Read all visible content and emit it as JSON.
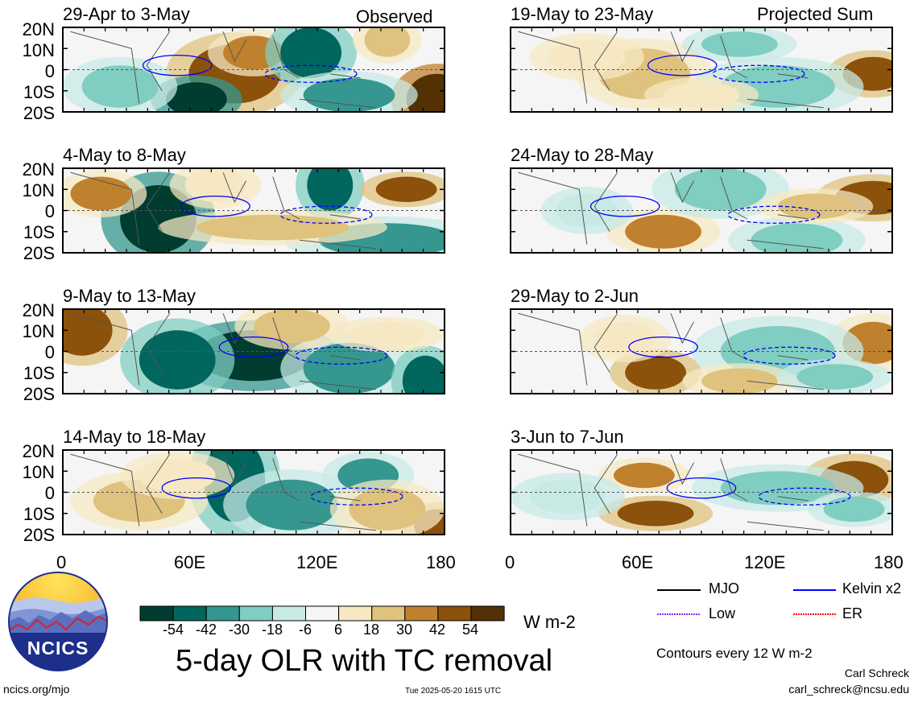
{
  "observed_label": "Observed",
  "projected_label": "Projected Sum",
  "panels_left": [
    {
      "title": "29-Apr to 3-May"
    },
    {
      "title": "4-May to 8-May"
    },
    {
      "title": "9-May to 13-May"
    },
    {
      "title": "14-May to 18-May"
    }
  ],
  "panels_right": [
    {
      "title": "19-May to 23-May"
    },
    {
      "title": "24-May to 28-May"
    },
    {
      "title": "29-May to 2-Jun"
    },
    {
      "title": "3-Jun to 7-Jun"
    }
  ],
  "lat_labels": [
    "20N",
    "10N",
    "0",
    "10S",
    "20S"
  ],
  "lon_labels": [
    "0",
    "60E",
    "120E",
    "180"
  ],
  "colorbar": {
    "ticks": [
      "-54",
      "-42",
      "-30",
      "-18",
      "-6",
      "6",
      "18",
      "30",
      "42",
      "54"
    ],
    "colors": [
      "#003c30",
      "#01665e",
      "#35978f",
      "#80cdc1",
      "#c7eae5",
      "#f5f5f5",
      "#f6e8c3",
      "#dfc27d",
      "#bf812d",
      "#8c510a",
      "#543005"
    ],
    "units": "W m-2"
  },
  "main_title": "5-day OLR with TC removal",
  "legend": {
    "items": [
      {
        "label": "MJO",
        "color": "#000000"
      },
      {
        "label": "Kelvin x2",
        "color": "#0000ff"
      },
      {
        "label": "Low",
        "color": "#8a2be2"
      },
      {
        "label": "ER",
        "color": "#ff0000"
      }
    ],
    "contour_note": "Contours every 12 W m-2"
  },
  "credit_name": "Carl Schreck",
  "credit_email": "carl_schreck@ncsu.edu",
  "site": "ncics.org/mjo",
  "timestamp": "Tue 2025-05-20 1615 UTC",
  "logo_text": "NCICS"
}
